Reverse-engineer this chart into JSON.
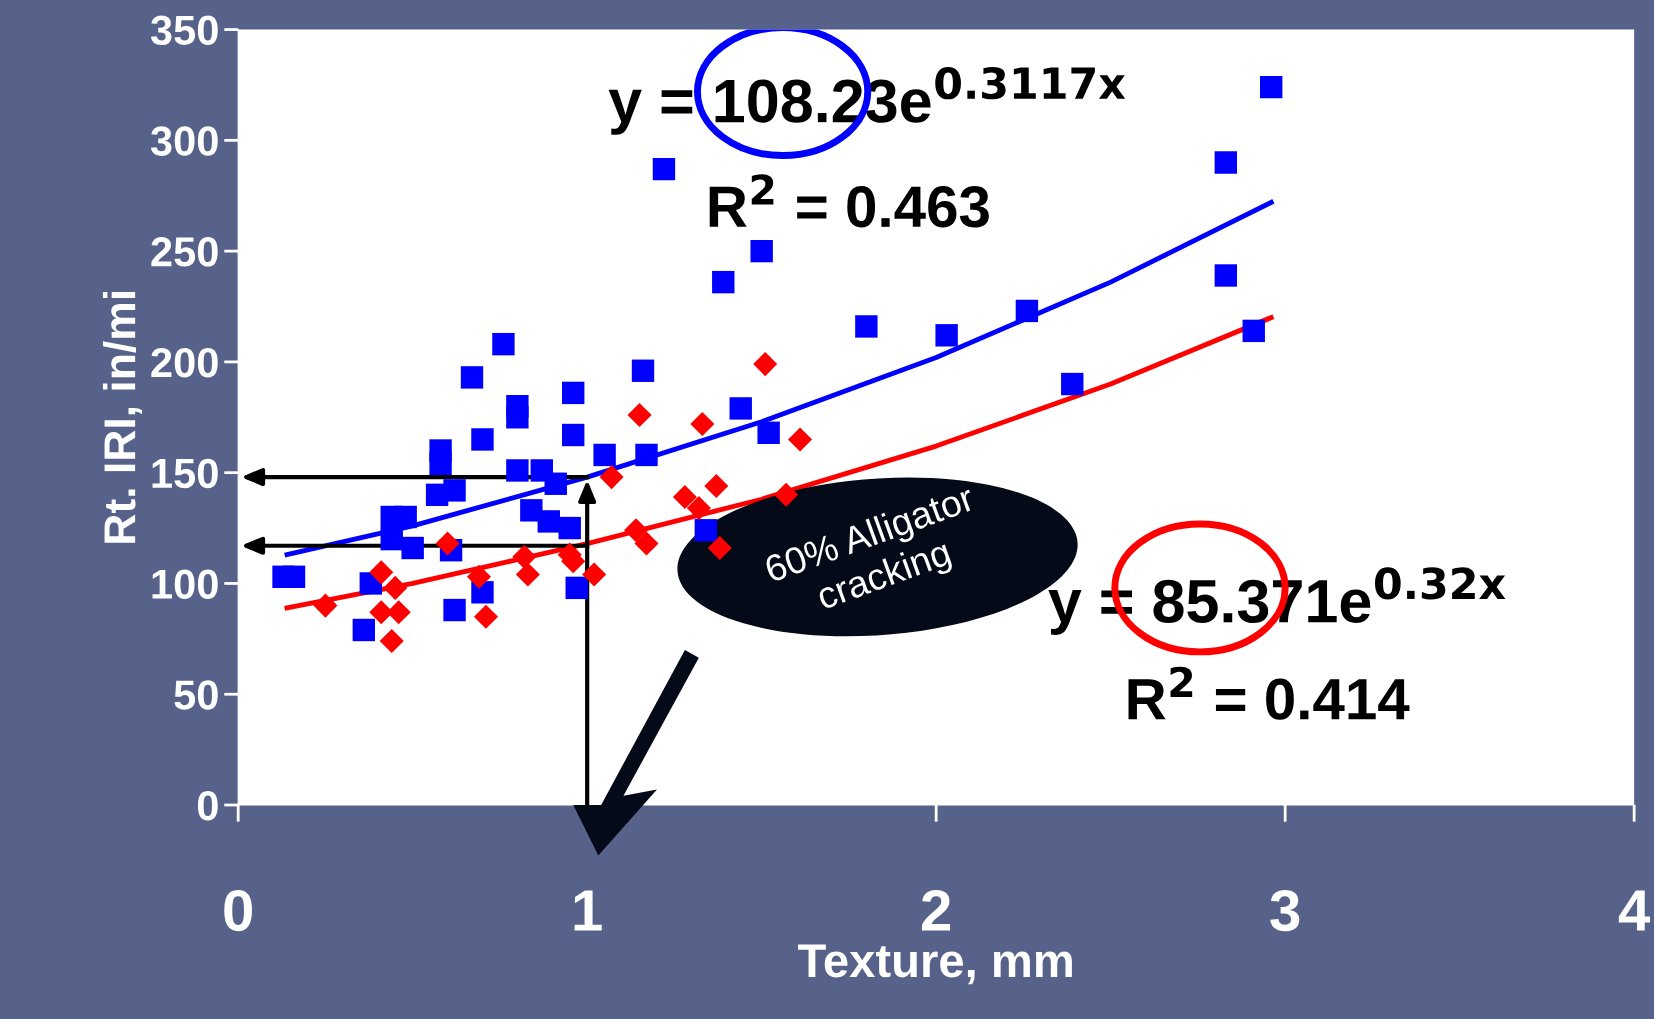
{
  "chart_data": {
    "type": "scatter",
    "xlabel": "Texture, mm",
    "ylabel": "Rt. IRI, in/mi",
    "xlim": [
      0,
      4
    ],
    "xticks": [
      0,
      1,
      2,
      3,
      4
    ],
    "ylim": [
      0,
      350
    ],
    "yticks": [
      0,
      50,
      100,
      150,
      200,
      250,
      300,
      350
    ],
    "grid": false,
    "legend": false,
    "series": [
      {
        "marker": "square",
        "color": "#0000ff",
        "x": [
          0.13,
          0.16,
          0.36,
          0.38,
          0.44,
          0.44,
          0.48,
          0.5,
          0.57,
          0.58,
          0.58,
          0.62,
          0.61,
          0.62,
          0.67,
          0.7,
          0.7,
          0.76,
          0.8,
          0.8,
          0.8,
          0.84,
          0.87,
          0.89,
          0.91,
          0.95,
          0.96,
          0.96,
          0.97,
          1.05,
          1.16,
          1.17,
          1.22,
          1.34,
          1.39,
          1.44,
          1.5,
          1.52,
          1.8,
          2.03,
          2.26,
          2.39,
          2.83,
          2.83,
          2.91,
          2.96
        ],
        "values": [
          103,
          103,
          79,
          100,
          130,
          120,
          130,
          116,
          140,
          154,
          160,
          142,
          115,
          88,
          193,
          165,
          96,
          208,
          180,
          175,
          151,
          133,
          151,
          128,
          145,
          125,
          186,
          167,
          98,
          158,
          196,
          158,
          287,
          124,
          236,
          179,
          250,
          168,
          216,
          212,
          223,
          190,
          290,
          239,
          214,
          324
        ]
      },
      {
        "marker": "diamond",
        "color": "#ff0000",
        "x": [
          0.25,
          0.41,
          0.41,
          0.44,
          0.46,
          0.6,
          0.45,
          0.71,
          0.69,
          0.82,
          0.83,
          0.95,
          0.96,
          1.02,
          1.07,
          1.15,
          1.14,
          1.17,
          1.28,
          1.32,
          1.33,
          1.37,
          1.38,
          1.51,
          1.57,
          1.61
        ],
        "values": [
          90,
          87,
          105,
          74,
          87,
          118,
          98,
          85,
          103,
          112,
          104,
          113,
          110,
          104,
          148,
          176,
          124,
          118,
          139,
          134,
          172,
          144,
          116,
          199,
          140,
          165
        ]
      },
      {
        "type": "line",
        "marker": "none",
        "line_style": "solid",
        "color": "#0000ff",
        "x": [
          0.14,
          0.5,
          1,
          1.5,
          2,
          2.5,
          2.96
        ],
        "values": [
          113,
          126,
          148,
          173,
          202,
          236,
          272
        ]
      },
      {
        "type": "line",
        "marker": "none",
        "line_style": "solid",
        "color": "#ff0000",
        "x": [
          0.14,
          0.5,
          1,
          1.5,
          2,
          2.5,
          2.96
        ],
        "values": [
          89,
          100,
          118,
          138,
          162,
          190,
          220
        ]
      }
    ],
    "ref_lines": [
      {
        "axis": "x",
        "value": 1,
        "color": "#000000"
      },
      {
        "axis": "y",
        "value": 148,
        "color": "#000000"
      },
      {
        "axis": "y",
        "value": 117,
        "color": "#000000"
      }
    ],
    "annotations": [
      "y = 108.23e$^{0.3117x}$",
      "R$^{2}$ = 0.463",
      "y = 85.371e$^{0.32x}$",
      "R$^{2}$ = 0.414",
      "60% Alligator cracking"
    ]
  }
}
